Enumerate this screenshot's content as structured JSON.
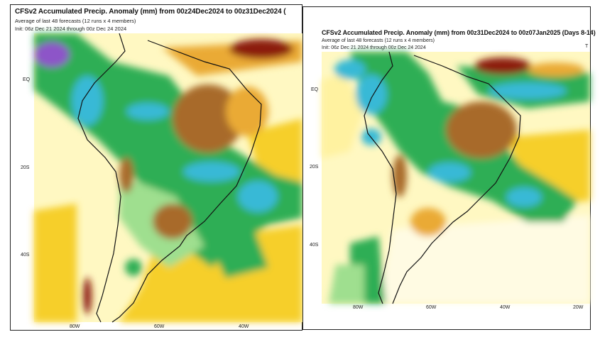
{
  "panels": [
    {
      "title": "CFSv2 Accumulated Precip. Anomaly (mm) from 00z24Dec2024 to 00z31Dec2024 (",
      "subtitle": "Average of last 48 forecasts (12 runs x 4 members)",
      "init": "Init: 06z Dec 21 2024 through 00z Dec 24 2024",
      "lat_labels": [
        "EQ",
        "20S",
        "40S"
      ],
      "lon_labels": [
        "80W",
        "60W",
        "40W"
      ]
    },
    {
      "title": "CFSv2 Accumulated Precip. Anomaly (mm) from 00z31Dec2024 to 00z07Jan2025 (Days 8-14)",
      "subtitle": "Average of last 48 forecasts (12 runs x 4 members)",
      "init": "Init: 06z Dec 21 2024 through 00z Dec 24 2024",
      "lat_labels": [
        "EQ",
        "20S",
        "40S"
      ],
      "lon_labels": [
        "80W",
        "60W",
        "40W",
        "20W"
      ],
      "edge_mark": "T"
    }
  ],
  "colors": {
    "background": "#ffffff",
    "very_wet": "#8d55c8",
    "wet_cyan": "#39b9d6",
    "wet_green": "#2eae54",
    "light_green": "#9fdf8f",
    "pale_yellow": "#fff8c2",
    "yellow": "#f6cf2c",
    "orange": "#eaaa35",
    "brown": "#a86a2b",
    "dark_red": "#8c1d0c",
    "coast": "#111111"
  }
}
